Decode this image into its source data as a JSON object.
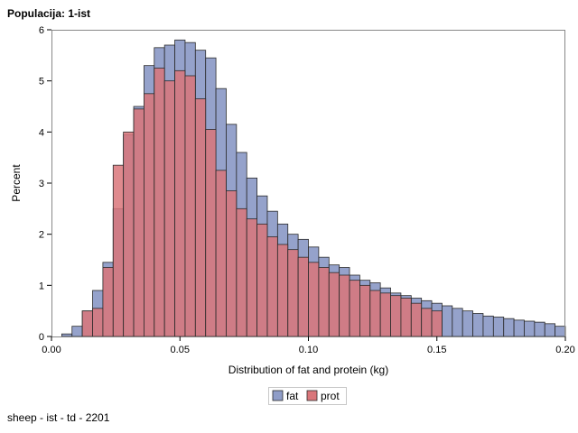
{
  "header": {
    "title": "Populacija: 1-ist"
  },
  "footer": {
    "note": "sheep - ist - td - 2201"
  },
  "chart_data": {
    "type": "bar",
    "subtype": "overlaid-histogram",
    "xlabel": "Distribution of fat and protein (kg)",
    "ylabel": "Percent",
    "xlim": [
      0.0,
      0.2
    ],
    "ylim": [
      0,
      6
    ],
    "bin_width": 0.004,
    "x_ticks": [
      "0.00",
      "0.05",
      "0.10",
      "0.15",
      "0.20"
    ],
    "y_ticks": [
      "0",
      "1",
      "2",
      "3",
      "4",
      "5",
      "6"
    ],
    "grid": false,
    "legend_position": "bottom-center",
    "series": [
      {
        "name": "fat",
        "color": "#8f9dc8",
        "bin_starts": [
          0.004,
          0.008,
          0.012,
          0.016,
          0.02,
          0.024,
          0.028,
          0.032,
          0.036,
          0.04,
          0.044,
          0.048,
          0.052,
          0.056,
          0.06,
          0.064,
          0.068,
          0.072,
          0.076,
          0.08,
          0.084,
          0.088,
          0.092,
          0.096,
          0.1,
          0.104,
          0.108,
          0.112,
          0.116,
          0.12,
          0.124,
          0.128,
          0.132,
          0.136,
          0.14,
          0.144,
          0.148,
          0.152,
          0.156,
          0.16,
          0.164,
          0.168,
          0.172,
          0.176,
          0.18,
          0.184,
          0.188,
          0.192,
          0.196
        ],
        "values": [
          0.05,
          0.2,
          0.5,
          0.9,
          1.45,
          2.5,
          3.95,
          4.5,
          5.3,
          5.65,
          5.7,
          5.8,
          5.75,
          5.6,
          5.45,
          4.85,
          4.15,
          3.6,
          3.1,
          2.75,
          2.45,
          2.2,
          2.0,
          1.9,
          1.75,
          1.55,
          1.4,
          1.35,
          1.2,
          1.1,
          1.05,
          0.95,
          0.85,
          0.8,
          0.75,
          0.7,
          0.65,
          0.6,
          0.55,
          0.5,
          0.45,
          0.4,
          0.38,
          0.35,
          0.32,
          0.3,
          0.28,
          0.25,
          0.2
        ]
      },
      {
        "name": "prot",
        "color": "#d9767a",
        "bin_starts": [
          0.012,
          0.016,
          0.02,
          0.024,
          0.028,
          0.032,
          0.036,
          0.04,
          0.044,
          0.048,
          0.052,
          0.056,
          0.06,
          0.064,
          0.068,
          0.072,
          0.076,
          0.08,
          0.084,
          0.088,
          0.092,
          0.096,
          0.1,
          0.104,
          0.108,
          0.112,
          0.116,
          0.12,
          0.124,
          0.128,
          0.132,
          0.136,
          0.14,
          0.144,
          0.148
        ],
        "values": [
          0.5,
          0.55,
          1.35,
          3.35,
          4.0,
          4.45,
          4.75,
          5.25,
          5.0,
          5.2,
          5.1,
          4.65,
          4.05,
          3.25,
          2.85,
          2.5,
          2.3,
          2.2,
          1.95,
          1.8,
          1.7,
          1.55,
          1.45,
          1.35,
          1.25,
          1.2,
          1.1,
          1.0,
          0.9,
          0.85,
          0.8,
          0.75,
          0.65,
          0.55,
          0.5
        ]
      }
    ]
  }
}
